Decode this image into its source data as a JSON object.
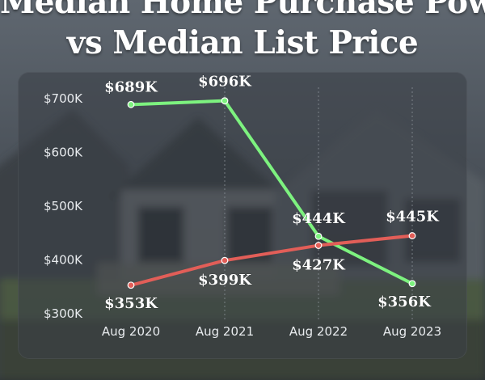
{
  "title": {
    "line1": "Median Home Purchase Power",
    "line2": "vs Median List Price"
  },
  "colors": {
    "purchase_power": "#7df27f",
    "list_price": "#e25e58",
    "gridline": "#8d949b",
    "label": "#ffffff"
  },
  "chart_data": {
    "type": "line",
    "title": "Median Home Purchase Power vs Median List Price",
    "xlabel": "",
    "ylabel": "",
    "categories": [
      "Aug 2020",
      "Aug 2021",
      "Aug 2022",
      "Aug 2023"
    ],
    "yticks": [
      "$700K",
      "$600K",
      "$500K",
      "$400K",
      "$300K"
    ],
    "ylim": [
      300,
      700
    ],
    "grid": "vertical",
    "series": [
      {
        "key": "purchase_power",
        "x": [
          2020.6,
          2021.6,
          2022.6,
          2023.6
        ],
        "values": [
          689,
          696,
          444,
          356
        ],
        "labels": [
          "$689K",
          "$696K",
          "$444K",
          "$356K"
        ]
      },
      {
        "key": "list_price",
        "x": [
          2020.6,
          2021.6,
          2022.6,
          2023.6
        ],
        "values": [
          353,
          399,
          427,
          445
        ],
        "labels": [
          "$353K",
          "$399K",
          "$427K",
          "$445K"
        ]
      }
    ]
  }
}
